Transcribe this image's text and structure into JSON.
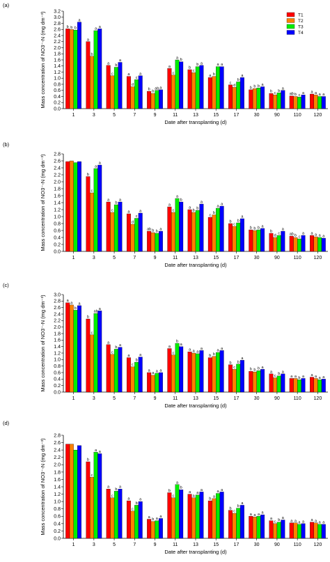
{
  "chart_data": [
    {
      "type": "bar",
      "panel_label": "(a)",
      "categories": [
        "1",
        "3",
        "5",
        "7",
        "9",
        "11",
        "13",
        "15",
        "17",
        "30",
        "90",
        "110",
        "120"
      ],
      "xlabel": "Date after transplanting (d)",
      "ylabel": "Mass concentration of NO3⁻-N (mg dm⁻³)",
      "ylim": [
        0,
        3.2
      ],
      "yticks": [
        "0.0",
        "0.2",
        "0.4",
        "0.6",
        "0.8",
        "1.0",
        "1.2",
        "1.4",
        "1.6",
        "1.8",
        "2.0",
        "2.2",
        "2.4",
        "2.6",
        "2.8",
        "3.0",
        "3.2"
      ],
      "legend_position": "top-right",
      "series": [
        {
          "name": "T1",
          "color": "#ff0000",
          "values": [
            2.62,
            2.2,
            1.42,
            1.06,
            0.57,
            1.32,
            1.28,
            1.02,
            0.78,
            0.62,
            0.5,
            0.42,
            0.48
          ],
          "sig": [
            "b",
            "a",
            "a",
            "a",
            "b",
            "a",
            "b",
            "a",
            "c",
            "b",
            "b",
            "ab",
            "a"
          ]
        },
        {
          "name": "T2",
          "color": "#ff8000",
          "values": [
            2.6,
            1.72,
            1.08,
            0.72,
            0.5,
            1.1,
            1.18,
            1.06,
            0.7,
            0.66,
            0.45,
            0.4,
            0.45
          ],
          "sig": [
            "b",
            "b",
            "c",
            "d",
            "b",
            "c",
            "c",
            "b",
            "d",
            "b",
            "c",
            "b",
            "a"
          ]
        },
        {
          "name": "T3",
          "color": "#00ee00",
          "values": [
            2.58,
            2.56,
            1.36,
            0.95,
            0.6,
            1.6,
            1.38,
            1.38,
            0.88,
            0.68,
            0.52,
            0.38,
            0.4
          ],
          "sig": [
            "b",
            "a",
            "b",
            "c",
            "ab",
            "a",
            "b",
            "a",
            "b",
            "b",
            "b",
            "c",
            "a"
          ]
        },
        {
          "name": "T4",
          "color": "#0000ff",
          "values": [
            2.84,
            2.62,
            1.52,
            1.08,
            0.62,
            1.54,
            1.42,
            1.38,
            1.02,
            0.72,
            0.6,
            0.45,
            0.4
          ],
          "sig": [
            "a",
            "a",
            "a",
            "a",
            "a",
            "b",
            "a",
            "a",
            "a",
            "a",
            "a",
            "a",
            "a"
          ]
        }
      ]
    },
    {
      "type": "bar",
      "panel_label": "(b)",
      "categories": [
        "1",
        "3",
        "5",
        "7",
        "9",
        "11",
        "13",
        "15",
        "17",
        "30",
        "90",
        "110",
        "120"
      ],
      "xlabel": "Date after transplanting (d)",
      "ylabel": "Mass concentration of NO3⁻-N (mg dm⁻³)",
      "ylim": [
        0,
        2.8
      ],
      "yticks": [
        "0.0",
        "0.2",
        "0.4",
        "0.6",
        "0.8",
        "1.0",
        "1.2",
        "1.4",
        "1.6",
        "1.8",
        "2.0",
        "2.2",
        "2.4",
        "2.6",
        "2.8"
      ],
      "series": [
        {
          "name": "T1",
          "color": "#ff0000",
          "values": [
            2.58,
            2.15,
            1.42,
            1.08,
            0.58,
            1.28,
            1.2,
            0.98,
            0.8,
            0.62,
            0.52,
            0.44,
            0.46
          ],
          "sig": [
            "",
            "b",
            "a",
            "a",
            "ab",
            "a",
            "a",
            "c",
            "b",
            "b",
            "b",
            "ab",
            "a"
          ]
        },
        {
          "name": "T2",
          "color": "#ff8000",
          "values": [
            2.6,
            1.68,
            1.12,
            0.78,
            0.54,
            1.12,
            1.12,
            1.05,
            0.72,
            0.6,
            0.4,
            0.4,
            0.42
          ],
          "sig": [
            "",
            "c",
            "c",
            "d",
            "b",
            "c",
            "b",
            "b",
            "c",
            "b",
            "d",
            "b",
            "a"
          ]
        },
        {
          "name": "T3",
          "color": "#00ee00",
          "values": [
            2.55,
            2.38,
            1.34,
            0.95,
            0.52,
            1.52,
            1.18,
            1.24,
            0.82,
            0.62,
            0.46,
            0.36,
            0.4
          ],
          "sig": [
            "",
            "a",
            "b",
            "c",
            "b",
            "a",
            "b",
            "a",
            "b",
            "b",
            "c",
            "c",
            "a"
          ]
        },
        {
          "name": "T4",
          "color": "#0000ff",
          "values": [
            2.58,
            2.48,
            1.42,
            1.1,
            0.58,
            1.42,
            1.36,
            1.3,
            0.94,
            0.66,
            0.58,
            0.46,
            0.38
          ],
          "sig": [
            "",
            "a",
            "a",
            "a",
            "a",
            "b",
            "a",
            "a",
            "a",
            "a",
            "a",
            "a",
            "a"
          ]
        }
      ]
    },
    {
      "type": "bar",
      "panel_label": "(c)",
      "categories": [
        "1",
        "3",
        "5",
        "7",
        "9",
        "11",
        "13",
        "15",
        "17",
        "30",
        "90",
        "110",
        "120"
      ],
      "xlabel": "Date after transplanting (d)",
      "ylabel": "Mass concentration of NO3⁻-N (mg dm⁻³)",
      "ylim": [
        0,
        3.0
      ],
      "yticks": [
        "0.0",
        "0.2",
        "0.4",
        "0.6",
        "0.8",
        "1.0",
        "1.2",
        "1.4",
        "1.6",
        "1.8",
        "2.0",
        "2.2",
        "2.4",
        "2.6",
        "2.8",
        "3.0"
      ],
      "series": [
        {
          "name": "T1",
          "color": "#ff0000",
          "values": [
            2.75,
            2.25,
            1.46,
            1.06,
            0.6,
            1.34,
            1.24,
            1.06,
            0.84,
            0.64,
            0.56,
            0.42,
            0.46
          ],
          "sig": [
            "a",
            "b",
            "a",
            "a",
            "a",
            "a",
            "a",
            "b",
            "b",
            "b",
            "a",
            "a",
            "a"
          ]
        },
        {
          "name": "T2",
          "color": "#ff8000",
          "values": [
            2.68,
            1.76,
            1.16,
            0.78,
            0.52,
            1.14,
            1.2,
            1.1,
            0.7,
            0.62,
            0.44,
            0.42,
            0.42
          ],
          "sig": [
            "a",
            "c",
            "c",
            "c",
            "a",
            "c",
            "a",
            "b",
            "c",
            "b",
            "c",
            "a",
            "a"
          ]
        },
        {
          "name": "T3",
          "color": "#00ee00",
          "values": [
            2.52,
            2.42,
            1.32,
            0.92,
            0.58,
            1.5,
            1.18,
            1.22,
            0.86,
            0.66,
            0.5,
            0.38,
            0.38
          ],
          "sig": [
            "b",
            "ab",
            "b",
            "b",
            "a",
            "b",
            "a",
            "a",
            "b",
            "b",
            "b",
            "b",
            "a"
          ]
        },
        {
          "name": "T4",
          "color": "#0000ff",
          "values": [
            2.66,
            2.5,
            1.38,
            1.08,
            0.6,
            1.4,
            1.28,
            1.28,
            0.98,
            0.7,
            0.56,
            0.42,
            0.4
          ],
          "sig": [
            "a",
            "a",
            "a",
            "a",
            "a",
            "a",
            "a",
            "a",
            "a",
            "a",
            "a",
            "a",
            "a"
          ]
        }
      ]
    },
    {
      "type": "bar",
      "panel_label": "(d)",
      "categories": [
        "1",
        "3",
        "5",
        "7",
        "9",
        "11",
        "13",
        "15",
        "17",
        "30",
        "90",
        "110",
        "120"
      ],
      "xlabel": "Date after transplanting (d)",
      "ylabel": "Mass concentration of NO3⁻-N (mg dm⁻³)",
      "ylim": [
        0,
        2.8
      ],
      "yticks": [
        "0.0",
        "0.2",
        "0.4",
        "0.6",
        "0.8",
        "1.0",
        "1.2",
        "1.4",
        "1.6",
        "1.8",
        "2.0",
        "2.2",
        "2.4",
        "2.6",
        "2.8"
      ],
      "series": [
        {
          "name": "T1",
          "color": "#ff0000",
          "values": [
            2.56,
            2.08,
            1.34,
            1.02,
            0.52,
            1.24,
            1.2,
            1.02,
            0.76,
            0.6,
            0.48,
            0.42,
            0.44
          ],
          "sig": [
            "",
            "b",
            "a",
            "a",
            "a",
            "b",
            "a",
            "b",
            "b",
            "a",
            "a",
            "a",
            "a"
          ]
        },
        {
          "name": "T2",
          "color": "#ff8000",
          "values": [
            2.56,
            1.66,
            1.1,
            0.74,
            0.46,
            1.1,
            1.1,
            1.08,
            0.68,
            0.58,
            0.4,
            0.42,
            0.42
          ],
          "sig": [
            "",
            "c",
            "c",
            "c",
            "b",
            "c",
            "a",
            "a",
            "c",
            "a",
            "c",
            "a",
            "a"
          ]
        },
        {
          "name": "T3",
          "color": "#00ee00",
          "values": [
            2.4,
            2.34,
            1.28,
            0.9,
            0.48,
            1.46,
            1.18,
            1.22,
            0.82,
            0.6,
            0.44,
            0.38,
            0.38
          ],
          "sig": [
            "",
            "a",
            "b",
            "b",
            "a",
            "a",
            "a",
            "a",
            "b",
            "a",
            "b",
            "a",
            "a"
          ]
        },
        {
          "name": "T4",
          "color": "#0000ff",
          "values": [
            2.52,
            2.3,
            1.34,
            1.0,
            0.54,
            1.32,
            1.26,
            1.26,
            0.9,
            0.64,
            0.5,
            0.4,
            0.38
          ],
          "sig": [
            "",
            "a",
            "a",
            "a",
            "a",
            "b",
            "a",
            "a",
            "a",
            "a",
            "a",
            "a",
            "a"
          ]
        }
      ]
    }
  ]
}
